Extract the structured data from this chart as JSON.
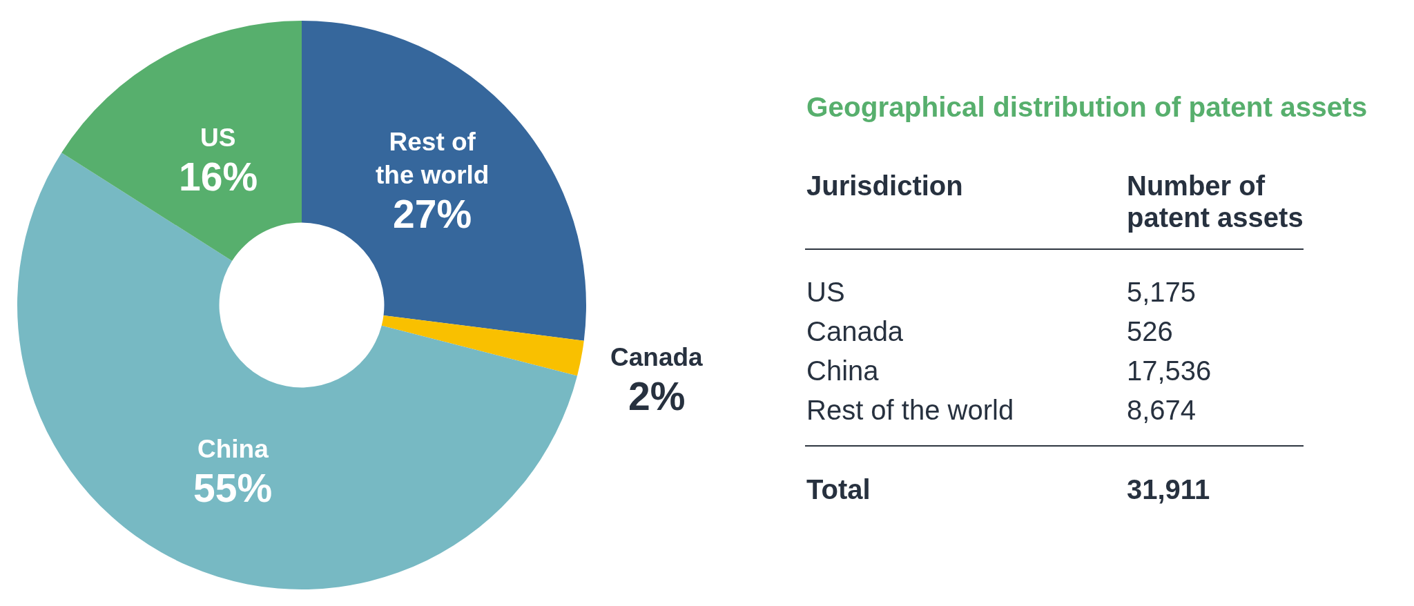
{
  "chart_data": [
    {
      "type": "donut",
      "categories": [
        "Rest of the world",
        "Canada",
        "China",
        "US"
      ],
      "values": [
        27,
        2,
        55,
        16
      ],
      "colors": [
        "#36679c",
        "#f9c000",
        "#77b9c3",
        "#57af6d"
      ],
      "value_labels": [
        "27%",
        "2%",
        "55%",
        "16%"
      ]
    },
    {
      "type": "other",
      "title": "Geographical distribution of patent assets",
      "xlabel": "Jurisdiction",
      "ylabel": "Number of patent assets",
      "categories": [
        "US",
        "Canada",
        "China",
        "Rest of the world"
      ],
      "values": [
        5175,
        526,
        17536,
        8674
      ],
      "value_labels": [
        "5,175",
        "526",
        "17,536",
        "8,674"
      ],
      "totals": [
        "31,911"
      ],
      "annotations": [
        "Total"
      ]
    }
  ]
}
